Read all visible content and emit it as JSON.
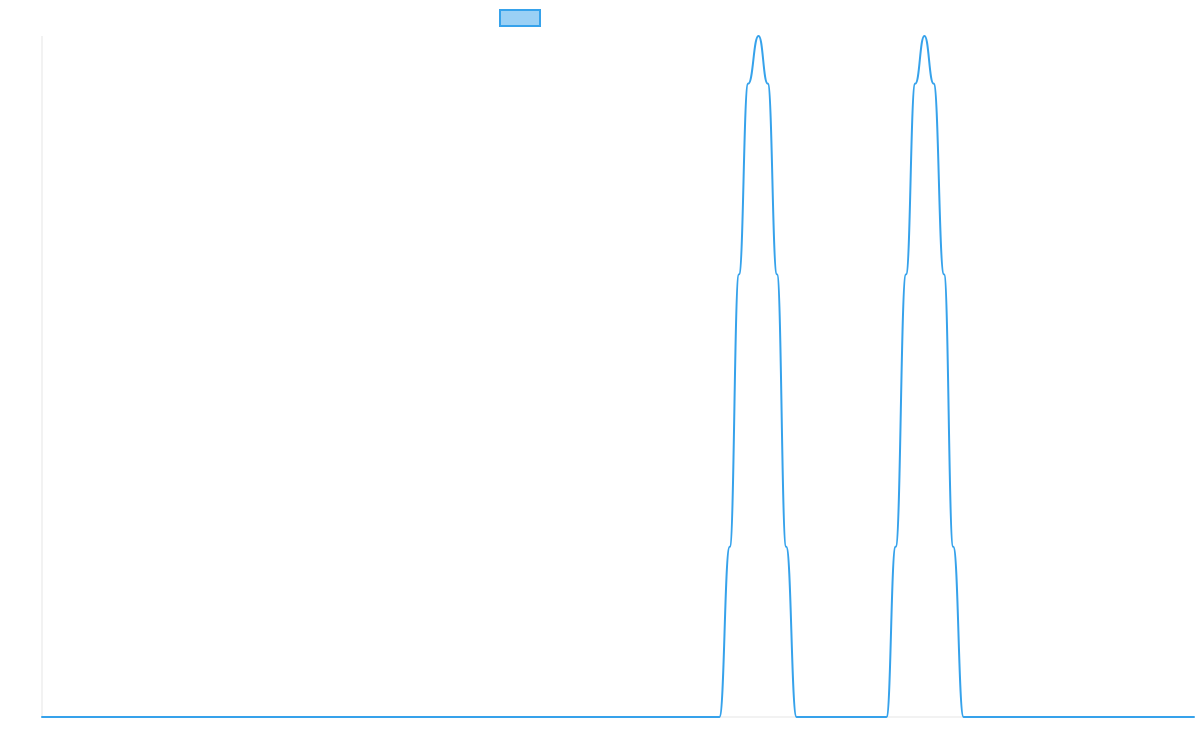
{
  "chart_data": {
    "type": "line",
    "title": "",
    "xlabel": "",
    "ylabel": "",
    "xlim": [
      0,
      100
    ],
    "ylim": [
      0,
      1
    ],
    "grid": false,
    "legend": {
      "placement": "top-center",
      "entries": [
        {
          "label": "",
          "color": "#36a2eb",
          "fill": "#9ad0f5"
        }
      ]
    },
    "series": [
      {
        "color": "#36a2eb",
        "x": [
          0,
          58.8,
          59.7,
          60.5,
          61.3,
          62.2,
          63.0,
          63.8,
          64.6,
          65.5,
          66.3,
          72.5,
          73.3,
          74.1,
          75.0,
          75.8,
          76.6,
          77.4,
          78.3,
          79.1,
          80.0,
          100
        ],
        "values": [
          0,
          0,
          0.25,
          0.65,
          0.93,
          1.0,
          0.93,
          0.65,
          0.25,
          0,
          0,
          0,
          0,
          0.25,
          0.65,
          0.93,
          1.0,
          0.93,
          0.65,
          0.25,
          0,
          0
        ]
      }
    ]
  }
}
